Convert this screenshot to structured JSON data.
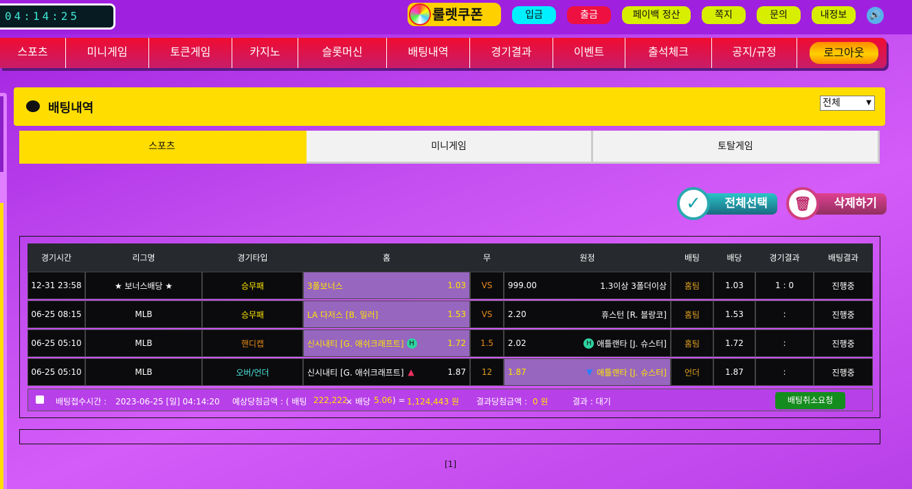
{
  "top": {
    "clock": "04:14:25",
    "logo": "룰렛쿠폰",
    "buttons": [
      {
        "label": "입금",
        "bg": "#00f0ff",
        "color": "#111"
      },
      {
        "label": "출금",
        "bg": "#ee1040",
        "color": "#fff"
      },
      {
        "label": "페이백 정산",
        "bg": "#d8ee00",
        "color": "#111"
      },
      {
        "label": "쪽지",
        "bg": "#d8ee00",
        "color": "#111"
      },
      {
        "label": "문의",
        "bg": "#d8ee00",
        "color": "#111"
      },
      {
        "label": "내정보",
        "bg": "#d8ee00",
        "color": "#111"
      }
    ],
    "speaker_icon": "speaker-icon"
  },
  "nav": {
    "items": [
      "스포츠",
      "미니게임",
      "토큰게임",
      "카지노",
      "슬롯머신",
      "배팅내역",
      "경기결과",
      "이벤트",
      "출석체크",
      "공지/규정"
    ],
    "logout": "로그아웃"
  },
  "header": {
    "title": "배팅내역",
    "filter": "전체"
  },
  "tabs": [
    "스포츠",
    "미니게임",
    "토탈게임"
  ],
  "actions": {
    "select_all": "전체선택",
    "delete": "삭제하기"
  },
  "table": {
    "columns": [
      "경기시간",
      "리그명",
      "경기타입",
      "홈",
      "무",
      "원정",
      "배팅",
      "배당",
      "경기결과",
      "배팅결과"
    ],
    "rows": [
      {
        "time": "12-31 23:58",
        "league": "★ 보너스배당 ★",
        "type": "승무패",
        "home": "3폴보너스",
        "home_odds": "1.03",
        "draw": "VS",
        "away_odds": "999.00",
        "away": "1.3이상 3폴더이상",
        "bet": "홈팀",
        "odds": "1.03",
        "result": "1 : 0",
        "status": "진행중"
      },
      {
        "time": "06-25 08:15",
        "league": "MLB",
        "type": "승무패",
        "home": "LA 다저스 [B. 밀러]",
        "home_odds": "1.53",
        "draw": "VS",
        "away_odds": "2.20",
        "away": "휴스턴 [R. 블랑코]",
        "bet": "홈팀",
        "odds": "1.53",
        "result": ":",
        "status": "진행중"
      },
      {
        "time": "06-25 05:10",
        "league": "MLB",
        "type": "핸디캡",
        "home": "신시내티 [G. 애쉬크래프트]",
        "home_odds": "1.72",
        "draw": "1.5",
        "away_odds": "2.02",
        "away": "애틀랜타 [J. 슈스터]",
        "bet": "홈팀",
        "odds": "1.72",
        "result": ":",
        "status": "진행중"
      },
      {
        "time": "06-25 05:10",
        "league": "MLB",
        "type": "오버/언더",
        "home": "신시내티 [G. 애쉬크래프트]",
        "home_odds": "1.87",
        "draw": "12",
        "away_odds": "1.87",
        "away": "애틀랜타 [J. 슈스터]",
        "bet": "언더",
        "odds": "1.87",
        "result": ":",
        "status": "진행중"
      }
    ],
    "footer": {
      "time_label": "배팅접수시간 :",
      "time": "2023-06-25 [일] 04:14:20",
      "expected_label": "예상당첨금액 : ( 배팅",
      "stake": "222,222",
      "times": "× 배당",
      "total_odds": "5.06",
      "equals": ") =",
      "expected": "1,124,443 원",
      "won_label": "결과당첨금액 :",
      "won": "0 원",
      "result_label": "결과 : 대기",
      "cancel": "배팅취소요청"
    }
  },
  "pagination": "[1]"
}
